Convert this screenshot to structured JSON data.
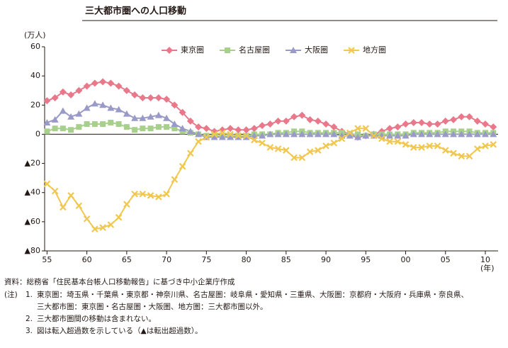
{
  "chart_data": {
    "type": "line",
    "title": "三大都市圏への人口移動",
    "ylabel": "(万人)",
    "xlabel": "(年)",
    "x": [
      1955,
      1956,
      1957,
      1958,
      1959,
      1960,
      1961,
      1962,
      1963,
      1964,
      1965,
      1966,
      1967,
      1968,
      1969,
      1970,
      1971,
      1972,
      1973,
      1974,
      1975,
      1976,
      1977,
      1978,
      1979,
      1980,
      1981,
      1982,
      1983,
      1984,
      1985,
      1986,
      1987,
      1988,
      1989,
      1990,
      1991,
      1992,
      1993,
      1994,
      1995,
      1996,
      1997,
      1998,
      1999,
      2000,
      2001,
      2002,
      2003,
      2004,
      2005,
      2006,
      2007,
      2008,
      2009,
      2010,
      2011
    ],
    "series": [
      {
        "name": "東京圏",
        "color": "#e8788a",
        "marker": "diamond",
        "values": [
          23,
          25,
          29,
          27,
          30,
          33,
          35,
          36,
          35,
          33,
          30,
          27,
          25,
          25,
          25,
          24,
          20,
          15,
          9,
          5,
          4,
          2,
          3,
          4,
          3,
          3,
          4,
          6,
          7,
          9,
          9,
          12,
          13,
          10,
          9,
          7,
          5,
          2,
          0,
          -2,
          -1,
          0,
          2,
          4,
          5,
          7,
          8,
          8,
          7,
          7,
          9,
          10,
          12,
          12,
          9,
          7,
          5
        ]
      },
      {
        "name": "名古屋圏",
        "color": "#a8d08d",
        "marker": "square",
        "values": [
          2,
          4,
          4,
          3,
          5,
          7,
          7,
          7,
          8,
          7,
          5,
          3,
          4,
          4,
          5,
          5,
          4,
          2,
          1,
          0,
          -1,
          -1,
          -1,
          -1,
          -1,
          -1,
          0,
          0,
          0,
          1,
          1,
          2,
          2,
          1,
          1,
          1,
          1,
          1,
          0,
          0,
          -1,
          0,
          0,
          0,
          0,
          0,
          1,
          1,
          1,
          1,
          2,
          2,
          2,
          2,
          1,
          1,
          1
        ]
      },
      {
        "name": "大阪圏",
        "color": "#9a9ac8",
        "marker": "triangle",
        "values": [
          8,
          10,
          16,
          12,
          14,
          18,
          21,
          20,
          18,
          17,
          14,
          11,
          11,
          12,
          13,
          11,
          7,
          4,
          2,
          0,
          -2,
          -2,
          -2,
          -2,
          -2,
          -2,
          -1,
          -1,
          0,
          0,
          0,
          0,
          0,
          0,
          0,
          0,
          0,
          -1,
          -1,
          -2,
          -1,
          -1,
          -1,
          -1,
          -1,
          -1,
          0,
          0,
          0,
          0,
          0,
          0,
          0,
          0,
          0,
          0,
          0
        ]
      },
      {
        "name": "地方圏",
        "color": "#f0c850",
        "marker": "cross",
        "values": [
          -34,
          -39,
          -50,
          -42,
          -49,
          -58,
          -65,
          -64,
          -62,
          -57,
          -48,
          -41,
          -41,
          -42,
          -43,
          -41,
          -31,
          -22,
          -13,
          -5,
          -2,
          0,
          1,
          0,
          -1,
          -1,
          -4,
          -6,
          -9,
          -10,
          -11,
          -16,
          -16,
          -12,
          -11,
          -8,
          -6,
          -3,
          1,
          4,
          4,
          -1,
          -3,
          -5,
          -5,
          -7,
          -9,
          -9,
          -8,
          -8,
          -11,
          -13,
          -15,
          -15,
          -10,
          -8,
          -7
        ]
      }
    ],
    "xlim": [
      1954.7,
      2011.6
    ],
    "xticks": [
      {
        "value": 1955,
        "label": "55"
      },
      {
        "value": 1960,
        "label": "60"
      },
      {
        "value": 1965,
        "label": "65"
      },
      {
        "value": 1970,
        "label": "70"
      },
      {
        "value": 1975,
        "label": "75"
      },
      {
        "value": 1980,
        "label": "80"
      },
      {
        "value": 1985,
        "label": "85"
      },
      {
        "value": 1990,
        "label": "90"
      },
      {
        "value": 1995,
        "label": "95"
      },
      {
        "value": 2000,
        "label": "00"
      },
      {
        "value": 2005,
        "label": "05"
      },
      {
        "value": 2010,
        "label": "10"
      }
    ],
    "ylim": [
      -80,
      60
    ],
    "yticks": [
      60,
      40,
      20,
      0,
      {
        "value": -20,
        "label": "▲20"
      },
      {
        "value": -40,
        "label": "▲40"
      },
      {
        "value": -60,
        "label": "▲60"
      },
      {
        "value": -80,
        "label": "▲80"
      }
    ],
    "grid": false,
    "legend": "top"
  },
  "source": "資料：総務省「住民基本台帳人口移動報告」に基づき中小企業庁作成",
  "notes_label": "(注)",
  "notes": [
    {
      "number": "1.",
      "lines": [
        "東京圏：埼玉県・千葉県・東京都・神奈川県、名古屋圏：岐阜県・愛知県・三重県、大阪圏：京都府・大阪府・兵庫県・奈良県、",
        "三大都市圏：東京圏・名古屋圏・大阪圏、地方圏：三大都市圏以外。"
      ]
    },
    {
      "number": "2.",
      "lines": [
        "三大都市圏間の移動は含まれない。"
      ]
    },
    {
      "number": "3.",
      "lines": [
        "図は転入超過数を示している（▲は転出超過数）。"
      ]
    }
  ]
}
